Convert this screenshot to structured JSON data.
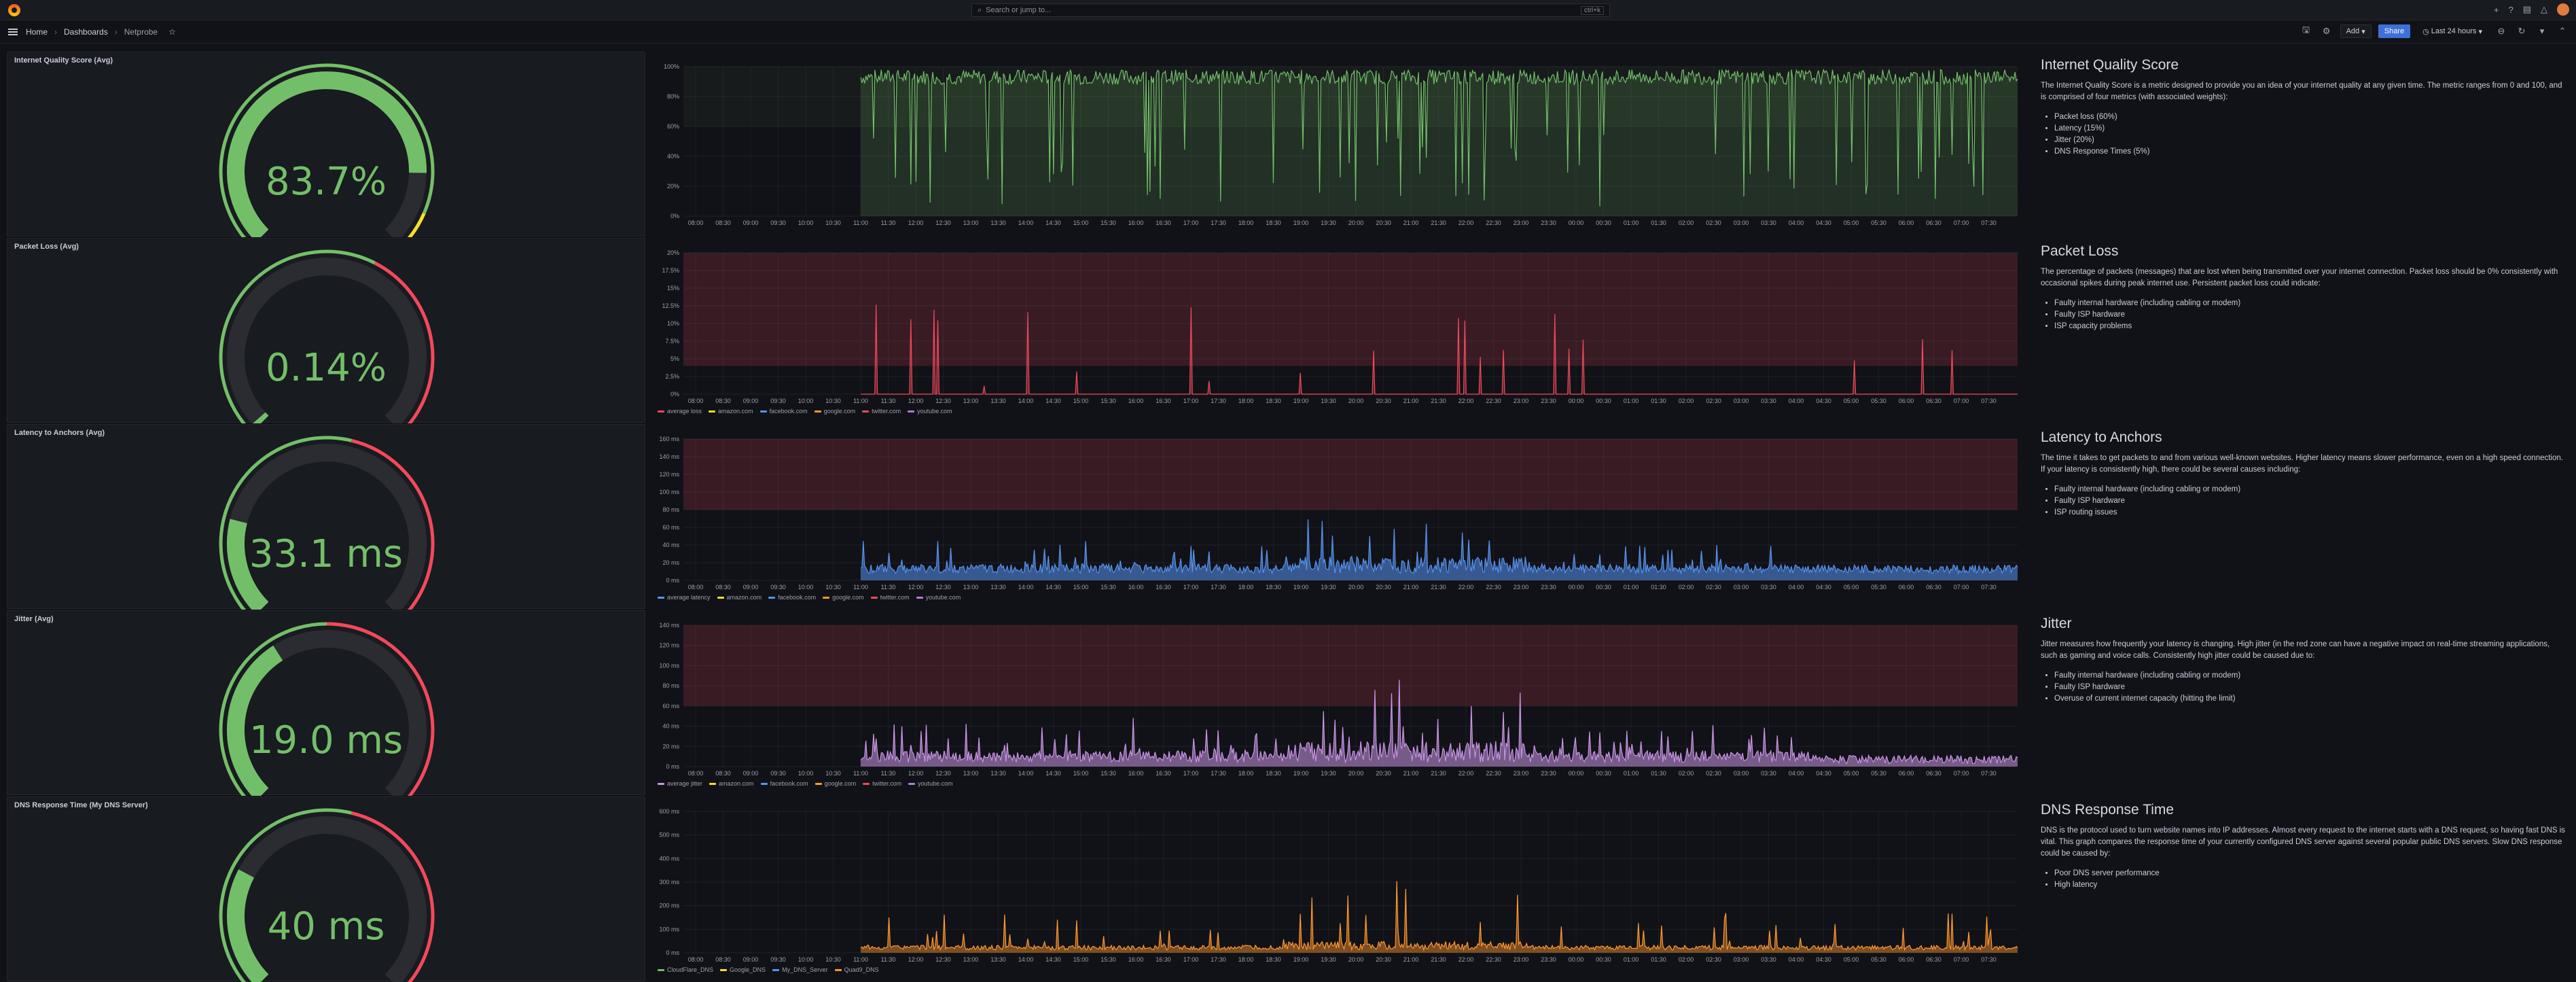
{
  "topbar": {
    "search_placeholder": "Search or jump to...",
    "search_shortcut": "ctrl+k"
  },
  "breadcrumb": {
    "home": "Home",
    "dashboards": "Dashboards",
    "current": "Netprobe"
  },
  "toolbar": {
    "add_label": "Add",
    "share_label": "Share",
    "time_range": "Last 24 hours"
  },
  "colors": {
    "green": "#73bf69",
    "red": "#f2495c",
    "blue": "#5794f2",
    "purple": "#ca95e5",
    "orange": "#ff9830",
    "yellow": "#fade2a"
  },
  "gauges": [
    {
      "title": "Internet Quality Score (Avg)",
      "value": "83.7%",
      "fraction": 0.837
    },
    {
      "title": "Packet Loss (Avg)",
      "value": "0.14%",
      "fraction": 0.007
    },
    {
      "title": "Latency to Anchors (Avg)",
      "value": "33.1 ms",
      "fraction": 0.22
    },
    {
      "title": "Jitter (Avg)",
      "value": "19.0 ms",
      "fraction": 0.38
    },
    {
      "title": "DNS Response Time (My DNS Server)",
      "value": "40 ms",
      "fraction": 0.27
    }
  ],
  "x_ticks": [
    "08:00",
    "08:30",
    "09:00",
    "09:30",
    "10:00",
    "10:30",
    "11:00",
    "11:30",
    "12:00",
    "12:30",
    "13:00",
    "13:30",
    "14:00",
    "14:30",
    "15:00",
    "15:30",
    "16:00",
    "16:30",
    "17:00",
    "17:30",
    "18:00",
    "18:30",
    "19:00",
    "19:30",
    "20:00",
    "20:30",
    "21:00",
    "21:30",
    "22:00",
    "22:30",
    "23:00",
    "23:30",
    "00:00",
    "00:30",
    "01:00",
    "01:30",
    "02:00",
    "02:30",
    "03:00",
    "03:30",
    "04:00",
    "04:30",
    "05:00",
    "05:30",
    "06:00",
    "06:30",
    "07:00",
    "07:30"
  ],
  "charts": [
    {
      "name": "quality",
      "y_ticks": [
        "100%",
        "80%",
        "60%",
        "40%",
        "20%",
        "0%"
      ],
      "legend": []
    },
    {
      "name": "packet-loss",
      "y_ticks": [
        "20%",
        "17.5%",
        "15%",
        "12.5%",
        "10%",
        "7.5%",
        "5%",
        "2.5%",
        "0%"
      ],
      "legend": [
        {
          "label": "average loss",
          "color": "#f2495c"
        },
        {
          "label": "amazon.com",
          "color": "#fade2a"
        },
        {
          "label": "facebook.com",
          "color": "#5794f2"
        },
        {
          "label": "google.com",
          "color": "#ff9830"
        },
        {
          "label": "twitter.com",
          "color": "#f2495c"
        },
        {
          "label": "youtube.com",
          "color": "#b877d9"
        }
      ]
    },
    {
      "name": "latency",
      "y_ticks": [
        "160 ms",
        "140 ms",
        "120 ms",
        "100 ms",
        "80 ms",
        "60 ms",
        "40 ms",
        "20 ms",
        "0 ms"
      ],
      "legend": [
        {
          "label": "average latency",
          "color": "#5794f2"
        },
        {
          "label": "amazon.com",
          "color": "#fade2a"
        },
        {
          "label": "facebook.com",
          "color": "#5794f2"
        },
        {
          "label": "google.com",
          "color": "#ff9830"
        },
        {
          "label": "twitter.com",
          "color": "#f2495c"
        },
        {
          "label": "youtube.com",
          "color": "#b877d9"
        }
      ]
    },
    {
      "name": "jitter",
      "y_ticks": [
        "140 ms",
        "120 ms",
        "100 ms",
        "80 ms",
        "60 ms",
        "40 ms",
        "20 ms",
        "0 ms"
      ],
      "legend": [
        {
          "label": "average jitter",
          "color": "#ca95e5"
        },
        {
          "label": "amazon.com",
          "color": "#fade2a"
        },
        {
          "label": "facebook.com",
          "color": "#5794f2"
        },
        {
          "label": "google.com",
          "color": "#ff9830"
        },
        {
          "label": "twitter.com",
          "color": "#f2495c"
        },
        {
          "label": "youtube.com",
          "color": "#b877d9"
        }
      ]
    },
    {
      "name": "dns",
      "y_ticks": [
        "600 ms",
        "500 ms",
        "400 ms",
        "300 ms",
        "200 ms",
        "100 ms",
        "0 ms"
      ],
      "legend": [
        {
          "label": "CloudFlare_DNS",
          "color": "#73bf69"
        },
        {
          "label": "Google_DNS",
          "color": "#fade2a"
        },
        {
          "label": "My_DNS_Server",
          "color": "#5794f2"
        },
        {
          "label": "Quad9_DNS",
          "color": "#ff9830"
        }
      ]
    }
  ],
  "descriptions": [
    {
      "title": "Internet Quality Score",
      "body": "The Internet Quality Score is a metric designed to provide you an idea of your internet quality at any given time. The metric ranges from 0 and 100, and is comprised of four metrics (with associated weights):",
      "items": [
        "Packet loss (60%)",
        "Latency (15%)",
        "Jitter (20%)",
        "DNS Response Times (5%)"
      ]
    },
    {
      "title": "Packet Loss",
      "body": "The percentage of packets (messages) that are lost when being transmitted over your internet connection. Packet loss should be 0% consistently with occasional spikes during peak internet use. Persistent packet loss could indicate:",
      "items": [
        "Faulty internal hardware (including cabling or modem)",
        "Faulty ISP hardware",
        "ISP capacity problems"
      ]
    },
    {
      "title": "Latency to Anchors",
      "body": "The time it takes to get packets to and from various well-known websites. Higher latency means slower performance, even on a high speed connection. If your latency is consistently high, there could be several causes including:",
      "items": [
        "Faulty internal hardware (including cabling or modem)",
        "Faulty ISP hardware",
        "ISP routing issues"
      ]
    },
    {
      "title": "Jitter",
      "body": "Jitter measures how frequently your latency is changing. High jitter (in the red zone can have a negative impact on real-time streaming applications, such as gaming and voice calls. Consistently high jitter could be caused due to:",
      "items": [
        "Faulty internal hardware (including cabling or modem)",
        "Faulty ISP hardware",
        "Overuse of current internet capacity (hitting the limit)"
      ]
    },
    {
      "title": "DNS Response Time",
      "body": "DNS is the protocol used to turn website names into IP addresses. Almost every request to the internet starts with a DNS request, so having fast DNS is vital. This graph compares the response time of your currently configured DNS server against several popular public DNS servers. Slow DNS response could be caused by:",
      "items": [
        "Poor DNS server performance",
        "High latency"
      ]
    }
  ]
}
